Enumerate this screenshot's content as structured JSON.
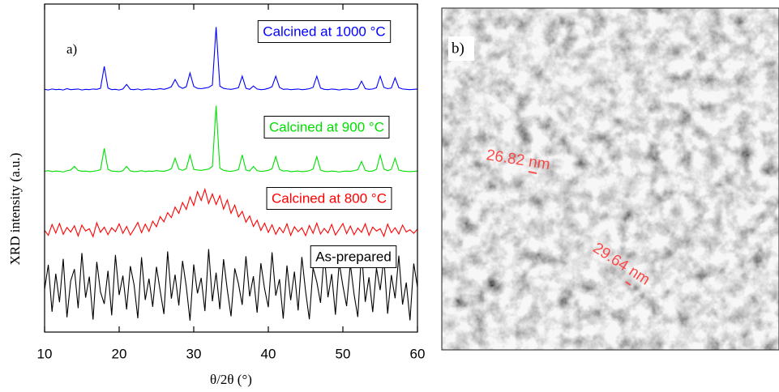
{
  "chart_data": {
    "type": "line",
    "panel_label": "a)",
    "y_label": "XRD intensity (a.u.)",
    "x_label": "θ/2θ (°)",
    "xlim": [
      10,
      60
    ],
    "xticks": [
      10,
      20,
      30,
      40,
      50,
      60
    ],
    "ylim": [
      0,
      100
    ],
    "x": [
      10,
      10.5,
      11,
      11.5,
      12,
      12.5,
      13,
      13.5,
      14,
      14.5,
      15,
      15.5,
      16,
      16.5,
      17,
      17.5,
      18,
      18.5,
      19,
      19.5,
      20,
      20.5,
      21,
      21.5,
      22,
      22.5,
      23,
      23.5,
      24,
      24.5,
      25,
      25.5,
      26,
      26.5,
      27,
      27.5,
      28,
      28.5,
      29,
      29.5,
      30,
      30.5,
      31,
      31.5,
      32,
      32.5,
      33,
      33.5,
      34,
      34.5,
      35,
      35.5,
      36,
      36.5,
      37,
      37.5,
      38,
      38.5,
      39,
      39.5,
      40,
      40.5,
      41,
      41.5,
      42,
      42.5,
      43,
      43.5,
      44,
      44.5,
      45,
      45.5,
      46,
      46.5,
      47,
      47.5,
      48,
      48.5,
      49,
      49.5,
      50,
      50.5,
      51,
      51.5,
      52,
      52.5,
      53,
      53.5,
      54,
      54.5,
      55,
      55.5,
      56,
      56.5,
      57,
      57.5,
      58,
      58.5,
      59,
      59.5,
      60
    ],
    "series": [
      {
        "name": "Calcined at 1000 °C",
        "color": "#0000ff",
        "values": [
          74,
          73.8,
          74.1,
          73.9,
          74,
          73.8,
          74.2,
          73.9,
          74,
          74.1,
          73.8,
          74,
          73.9,
          74.1,
          74,
          74.3,
          81,
          74.4,
          73.9,
          74,
          73.8,
          74.1,
          75.5,
          74,
          73.9,
          74.1,
          73.8,
          74,
          74.1,
          73.9,
          74,
          74.2,
          74,
          74.3,
          74.8,
          77,
          74.9,
          74.3,
          74.8,
          79,
          74.9,
          74.3,
          74.2,
          74.4,
          74.6,
          75.3,
          93,
          75,
          74.3,
          74.1,
          74,
          74.2,
          74.5,
          78,
          74.3,
          74,
          75,
          74.1,
          73.9,
          74,
          74.3,
          74.8,
          78,
          74.6,
          74,
          74.1,
          73.9,
          74,
          74.1,
          73.9,
          74,
          74.2,
          74.6,
          78,
          74.4,
          74,
          73.9,
          74.1,
          74,
          73.8,
          74,
          74.1,
          73.9,
          74,
          74.3,
          76.5,
          74.2,
          74,
          74.1,
          74.5,
          78,
          74.6,
          74.2,
          74.4,
          77.5,
          74.5,
          74.1,
          74,
          73.9,
          74,
          74.1
        ]
      },
      {
        "name": "Calcined at 900 °C",
        "color": "#00e000",
        "values": [
          49,
          49.2,
          48.9,
          49.1,
          49,
          48.8,
          49.2,
          49.4,
          50.5,
          49.3,
          49,
          49.1,
          48.9,
          49,
          49.2,
          49.5,
          56,
          49.6,
          49.1,
          49,
          48.9,
          49.2,
          50.5,
          49.1,
          48.9,
          49,
          49.2,
          48.9,
          49.1,
          49,
          49.2,
          49.1,
          49,
          49.3,
          49.8,
          53,
          49.7,
          49.3,
          49.8,
          54,
          49.6,
          49.4,
          49.3,
          49.5,
          49.7,
          50.5,
          69,
          50,
          49.3,
          49.1,
          49,
          49.2,
          49.5,
          54,
          49.4,
          49.1,
          50.5,
          49.2,
          49,
          49.1,
          49.3,
          49.8,
          53.5,
          49.6,
          49.1,
          49.2,
          48.9,
          49,
          49.1,
          48.9,
          49,
          49.2,
          49.7,
          53.5,
          49.4,
          49,
          48.9,
          49.1,
          49,
          48.8,
          49,
          49.1,
          49,
          49.2,
          49.5,
          52,
          49.3,
          49,
          49.1,
          49.6,
          54,
          49.7,
          49.2,
          49.6,
          53,
          49.4,
          49.1,
          49,
          48.9,
          49,
          49.1
        ]
      },
      {
        "name": "Calcined at 800 °C",
        "color": "#ff0000",
        "values": [
          31,
          29.5,
          32.8,
          30.2,
          33.1,
          29.8,
          31.9,
          30.5,
          32.4,
          29.3,
          32.6,
          30.8,
          31.5,
          29.1,
          33.3,
          30.4,
          32,
          29.7,
          31.8,
          30.6,
          33,
          30.1,
          32.2,
          29.6,
          31.4,
          33.4,
          30.3,
          32.9,
          30.7,
          33.8,
          32.1,
          35.2,
          33.6,
          36.4,
          34.9,
          38.1,
          36.2,
          39.5,
          37.4,
          41.2,
          38.6,
          42.8,
          40.1,
          43.5,
          39.2,
          42.1,
          38.9,
          41.6,
          37.5,
          40.3,
          36.2,
          38.7,
          35.1,
          36.8,
          33.5,
          35.4,
          32.2,
          34.1,
          31,
          33.2,
          30.4,
          32.7,
          29.8,
          31.9,
          30.3,
          33,
          29.5,
          32.1,
          30.6,
          31.8,
          29.4,
          32.5,
          30.1,
          33.2,
          29.9,
          31.6,
          30.2,
          32.8,
          29.6,
          31.3,
          33.1,
          30,
          32.3,
          29.7,
          31.7,
          30.4,
          33,
          29.5,
          32,
          30.8,
          31.5,
          29.2,
          32.9,
          30.3,
          31.8,
          29.9,
          32.6,
          30.5,
          31.2,
          30.1,
          31.4
        ]
      },
      {
        "name": "As-prepared",
        "color": "#000000",
        "values": [
          13,
          20.5,
          6.2,
          17.8,
          9.1,
          22.3,
          4.5,
          15.6,
          19.2,
          7.3,
          24.1,
          10.5,
          16.9,
          3.8,
          21.4,
          12.2,
          8.6,
          18.7,
          5.1,
          23.5,
          11.3,
          17.2,
          6.9,
          20.1,
          14.4,
          4.2,
          22.8,
          9.8,
          16.3,
          7.7,
          19.9,
          12.6,
          5.5,
          24.6,
          10.2,
          17.5,
          8.1,
          21.7,
          13.9,
          3.5,
          20.6,
          11.8,
          16.5,
          6.4,
          25.3,
          9.4,
          18.1,
          7,
          22.2,
          12.9,
          4.8,
          19.4,
          14.7,
          8.3,
          23.1,
          10.9,
          17,
          5.9,
          21,
          13.2,
          7.6,
          24.3,
          11.1,
          16.1,
          4.1,
          20.3,
          9.7,
          18.4,
          6.6,
          22.9,
          12.4,
          3.9,
          19.6,
          15.3,
          8.9,
          23.8,
          10.6,
          17.7,
          5.3,
          21.2,
          14.1,
          7.9,
          20.8,
          11.5,
          4.6,
          24.7,
          9.2,
          16.7,
          6.1,
          19.5,
          12.8,
          22.6,
          5.6,
          17.4,
          10.3,
          23.3,
          8.4,
          15.1,
          3.6,
          20.9,
          13.7
        ]
      }
    ]
  },
  "image": {
    "panel_label": "b)",
    "measurements": [
      "26.82 nm",
      "29.64 nm"
    ]
  }
}
